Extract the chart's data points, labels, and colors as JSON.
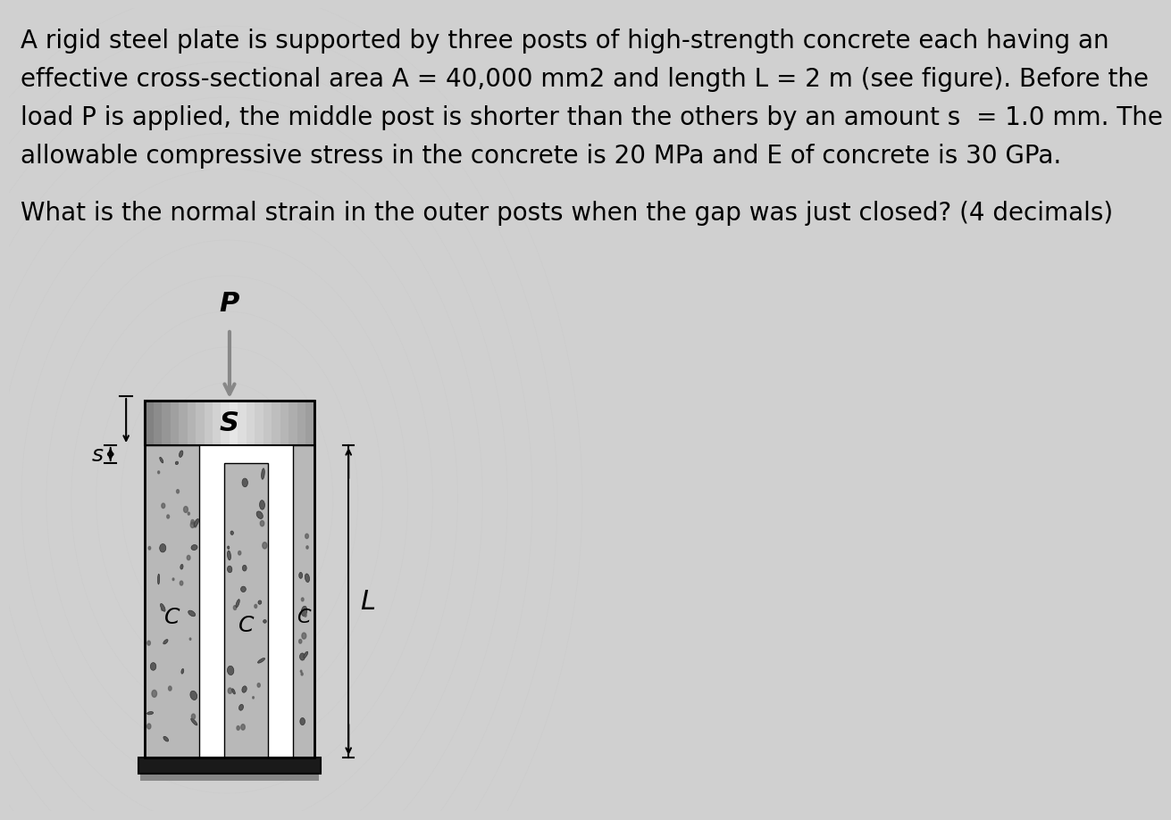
{
  "bg_color": "#d0d0d0",
  "text_lines": [
    "A rigid steel plate is supported by three posts of high-strength concrete each having an",
    "effective cross-sectional area A = 40,000 mm2 and length L = 2 m (see figure). Before the",
    "load P is applied, the middle post is shorter than the others by an amount s  = 1.0 mm. The",
    "allowable compressive stress in the concrete is 20 MPa and E of concrete is 30 GPa."
  ],
  "question": "What is the normal strain in the outer posts when the gap was just closed? (4 decimals)",
  "text_fontsize": 20,
  "question_fontsize": 20,
  "concrete_color": "#b8b8b8",
  "concrete_dot_color": "#555555",
  "plate_color_light": "#e0e0e0",
  "plate_color_dark": "#888888",
  "base_color": "#1a1a1a",
  "white": "#ffffff",
  "arrow_color": "#888888"
}
